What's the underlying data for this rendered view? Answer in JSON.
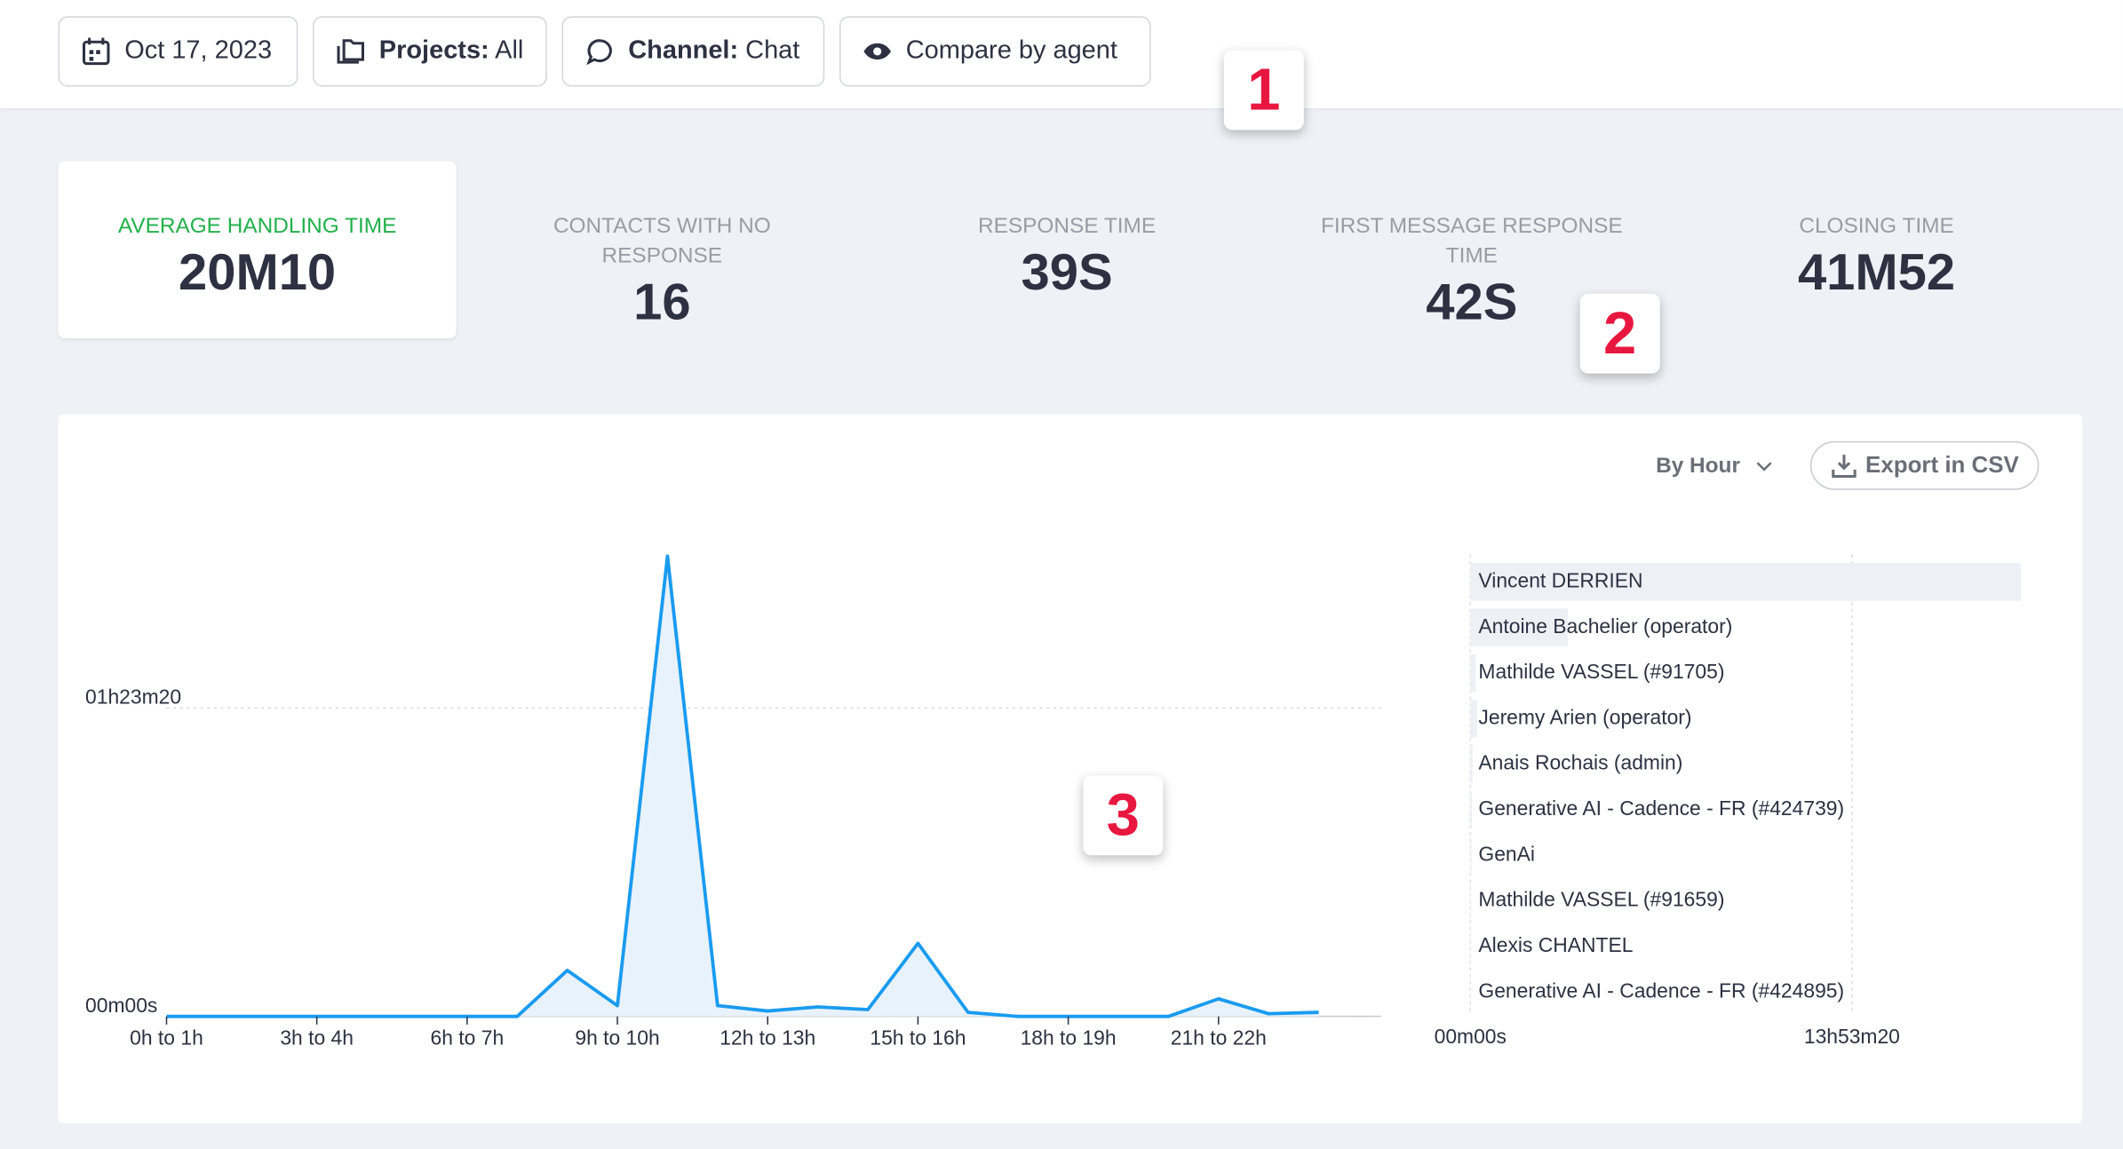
{
  "filters": {
    "date": "Oct 17, 2023",
    "projects": {
      "label": "Projects:",
      "value": "All"
    },
    "channel": {
      "label": "Channel:",
      "value": "Chat"
    },
    "compare": "Compare by agent"
  },
  "kpis": [
    {
      "label": "AVERAGE HANDLING TIME",
      "value": "20M10"
    },
    {
      "label": "CONTACTS WITH NO RESPONSE",
      "value": "16"
    },
    {
      "label": "RESPONSE TIME",
      "value": "39S"
    },
    {
      "label": "FIRST MESSAGE RESPONSE TIME",
      "value": "42S"
    },
    {
      "label": "CLOSING TIME",
      "value": "41M52"
    }
  ],
  "badges": [
    "1",
    "2",
    "3"
  ],
  "controls": {
    "granularity": "By Hour",
    "export": "Export in CSV"
  },
  "chart_data": [
    {
      "type": "line",
      "color": "#1a9bf0",
      "area_color": "#e8f2fc",
      "categories": [
        "0h to 1h",
        null,
        null,
        "3h to 4h",
        null,
        null,
        "6h to 7h",
        null,
        null,
        "9h to 10h",
        null,
        null,
        "12h to 13h",
        null,
        null,
        "15h to 16h",
        null,
        null,
        "18h to 19h",
        null,
        null,
        "21h to 22h",
        null,
        null
      ],
      "values": [
        0,
        0,
        0,
        0,
        0,
        0,
        0,
        0,
        746,
        175,
        7456,
        175,
        88,
        154,
        110,
        1184,
        66,
        0,
        0,
        0,
        0,
        285,
        44,
        66
      ],
      "ylim": [
        0,
        7500
      ],
      "yticks": [
        {
          "value": 0,
          "label": "00m00s"
        },
        {
          "value": 5000,
          "label": "01h23m20"
        }
      ],
      "grid": true
    },
    {
      "type": "bar",
      "orientation": "horizontal",
      "color": "#eef0f5",
      "categories": [
        "Vincent DERRIEN",
        "Antoine Bachelier (operator)",
        "Mathilde VASSEL (#91705)",
        "Jeremy Arien (operator)",
        "Anais Rochais (admin)",
        "Generative AI - Cadence - FR (#424739)",
        "GenAi",
        "Mathilde VASSEL (#91659)",
        "Alexis CHANTEL",
        "Generative AI - Cadence - FR (#424895)"
      ],
      "values": [
        72163,
        12766,
        709,
        887,
        300,
        200,
        150,
        100,
        80,
        60
      ],
      "xlim": [
        0,
        72200
      ],
      "xticks": [
        {
          "value": 0,
          "label": "00m00s"
        },
        {
          "value": 50000,
          "label": "13h53m20"
        }
      ],
      "grid": true
    }
  ]
}
